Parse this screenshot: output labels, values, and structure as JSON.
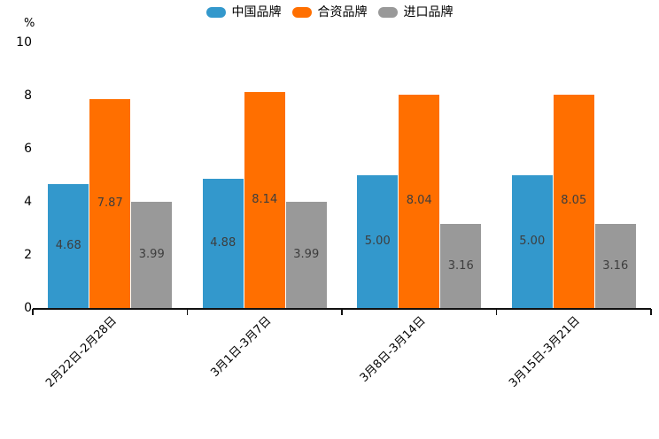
{
  "chart_data": {
    "type": "bar",
    "title": "",
    "ylabel": "%",
    "xlabel": "",
    "ylim": [
      0,
      10
    ],
    "yticks": [
      0,
      2,
      4,
      6,
      8,
      10
    ],
    "grid": false,
    "legend_position": "top",
    "categories": [
      "2月22日-2月28日",
      "3月1日-3月7日",
      "3月8日-3月14日",
      "3月15日-3月21日"
    ],
    "series": [
      {
        "name": "中国品牌",
        "color": "#3398CC",
        "values": [
          4.68,
          4.88,
          5.0,
          5.0
        ],
        "labels": [
          "4.68",
          "4.88",
          "5.00",
          "5.00"
        ]
      },
      {
        "name": "合资品牌",
        "color": "#FF6F00",
        "values": [
          7.87,
          8.14,
          8.04,
          8.05
        ],
        "labels": [
          "7.87",
          "8.14",
          "8.04",
          "8.05"
        ]
      },
      {
        "name": "进口品牌",
        "color": "#999999",
        "values": [
          3.99,
          3.99,
          3.16,
          3.16
        ],
        "labels": [
          "3.99",
          "3.99",
          "3.16",
          "3.16"
        ]
      }
    ],
    "bar_label_color": "#3D3D3D",
    "axis_color": "#111111"
  }
}
